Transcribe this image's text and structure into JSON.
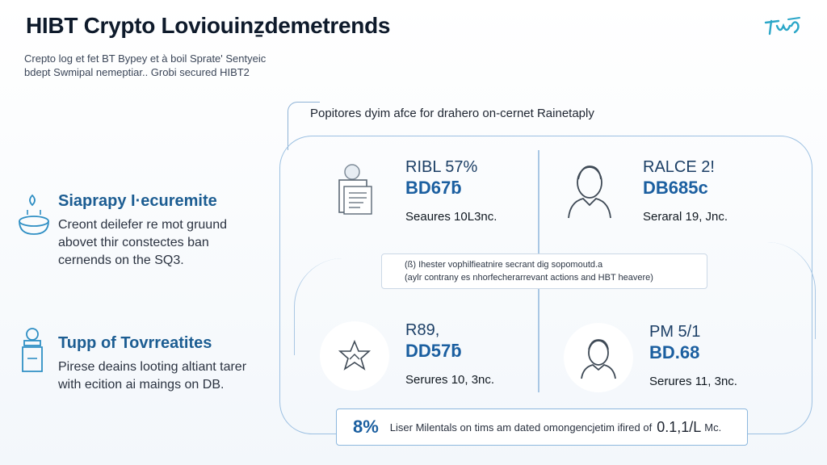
{
  "header": {
    "title": "HIBT Crypto Loviouinẕdemetrends",
    "subtitle_lines": [
      "Crepto log et fet BT Bypey et à boil Sprate' Sentyeic",
      "bdept Swmipal nemeptiar.. Grobi secured HIBT2"
    ],
    "logo_icon": "brand-logo-icon"
  },
  "features": [
    {
      "heading": "Siaprapy I·ecuremite",
      "icon": "bowl-gear-icon",
      "lines": [
        "Creont deilefer re mot gruund",
        "abovet thir constectes ban",
        "cernends on the SQ3."
      ]
    },
    {
      "heading": "Tupp of Tovrreatites",
      "icon": "person-desk-icon",
      "lines": [
        "Pirese deains looting altiant tarer",
        "with ecition ai maings on DB."
      ]
    }
  ],
  "panel": {
    "label": "Popitores dyim afce for drahero on-cernet Rainetaply",
    "cards": [
      {
        "top": "RIBL 57%",
        "mid": "BD67ƃ",
        "bot": "Seaures 10L3nc.",
        "icon": "document-stack-icon"
      },
      {
        "top": "RALCE 2!",
        "mid": "DB685c",
        "bot": "Seraral 19, Jnc.",
        "icon": "person-outline-icon"
      },
      {
        "top": "R89,",
        "mid": "DD57ƃ",
        "bot": "Serures 10, 3nc.",
        "icon": "star-emblem-icon"
      },
      {
        "top": "PM 5/1",
        "mid": "BD.68",
        "bot": "Serures 11, 3nc.",
        "icon": "person-avatar-icon"
      }
    ],
    "note_lines": [
      "(ß) Ihester vophilfieatnire secrant dig sopomoutd.a",
      "(aylr contrany es nhorfecherarrevant actions and HBT heavere)"
    ]
  },
  "footer": {
    "percent": "8%",
    "text": "Liser Milentals on tims am dated omongencjetim ifired of",
    "number": "0.1,1/L",
    "suffix": "Mc."
  },
  "colors": {
    "accent": "#1b5fa0",
    "heading_blue": "#1c5d92",
    "frame": "#9cc0e2",
    "logo": "#2aa6c8"
  }
}
